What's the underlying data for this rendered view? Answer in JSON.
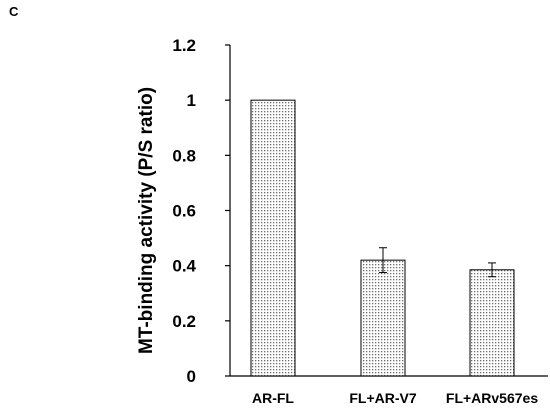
{
  "panel_label": "C",
  "chart_data": {
    "type": "bar",
    "categories": [
      "AR-FL",
      "FL+AR-V7",
      "FL+ARv567es"
    ],
    "values": [
      1.0,
      0.42,
      0.385
    ],
    "error": [
      0.0,
      0.045,
      0.025
    ],
    "ylabel": "MT-binding activity (P/S ratio)",
    "xlabel": "",
    "ylim": [
      0,
      1.2
    ],
    "yticks": [
      0,
      0.2,
      0.4,
      0.6,
      0.8,
      1,
      1.2
    ],
    "ytick_labels": [
      "0",
      "0.2",
      "0.4",
      "0.6",
      "0.8",
      "1",
      "1.2"
    ],
    "grid": false,
    "legend": "none",
    "bar_fill": "dotted gray",
    "colors": {
      "bar_base": "#ffffff",
      "bar_dots": "#6e6e6e",
      "axis": "#000000"
    }
  }
}
